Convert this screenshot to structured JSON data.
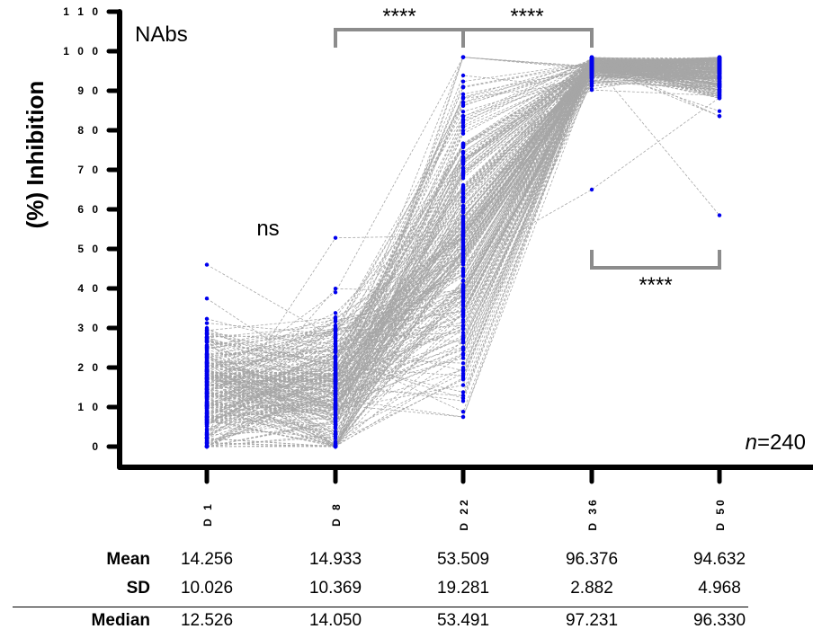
{
  "chart_data": {
    "type": "line",
    "title": "NAbs",
    "ylabel": "(%) Inhibition",
    "xlabel": "",
    "ylim": [
      0,
      110
    ],
    "yticks": [
      0,
      10,
      20,
      30,
      40,
      50,
      60,
      70,
      80,
      90,
      100,
      110
    ],
    "categories": [
      "D 1",
      "D 8",
      "D 22",
      "D 36",
      "D 50"
    ],
    "n_label": "n=240",
    "n_italic": "n",
    "n_value": "=240",
    "series_style": {
      "point_color": "#0000ee",
      "line_color": "#a6a6a6",
      "line_style": "dashed"
    },
    "summary": {
      "mean": [
        14.256,
        14.933,
        53.509,
        96.376,
        94.632
      ],
      "sd": [
        10.026,
        10.369,
        19.281,
        2.882,
        4.968
      ],
      "median": [
        12.526,
        14.05,
        53.491,
        97.231,
        96.33
      ],
      "min": [
        0.0,
        0.0,
        7.5,
        65.0,
        58.5
      ],
      "max": [
        46.0,
        52.8,
        98.5,
        98.5,
        98.5
      ]
    },
    "comparisons": [
      {
        "from": "D 1",
        "to": "D 8",
        "label": "ns"
      },
      {
        "from": "D 8",
        "to": "D 22",
        "label": "****"
      },
      {
        "from": "D 22",
        "to": "D 36",
        "label": "****"
      },
      {
        "from": "D 36",
        "to": "D 50",
        "label": "****"
      }
    ]
  },
  "stats_table": {
    "labels": {
      "mean": "Mean",
      "sd": "SD",
      "median": "Median"
    },
    "mean": [
      "14.256",
      "14.933",
      "53.509",
      "96.376",
      "94.632"
    ],
    "sd": [
      "10.026",
      "10.369",
      "19.281",
      "2.882",
      "4.968"
    ],
    "median": [
      "12.526",
      "14.050",
      "53.491",
      "97.231",
      "96.330"
    ]
  }
}
